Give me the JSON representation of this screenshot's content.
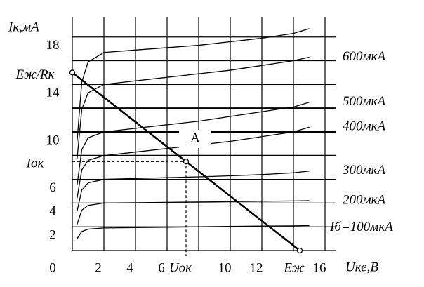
{
  "chart_data": {
    "type": "line",
    "y_label": "Iк,мА",
    "x_label": "Uке,В",
    "annotation": "A",
    "xlim": [
      0,
      16.7
    ],
    "ylim": [
      0,
      19.7
    ],
    "xgrid": [
      0,
      2,
      4,
      6,
      8,
      10,
      12,
      14,
      16
    ],
    "ygrid": [
      0,
      2,
      4,
      6,
      8,
      10,
      12,
      14,
      16,
      18
    ],
    "xticks": [
      0,
      2,
      4,
      6,
      {
        "value": 7.2,
        "label": "Uок"
      },
      10,
      12,
      {
        "value": 14.4,
        "label": "Eж"
      },
      16
    ],
    "yticks": [
      2,
      4,
      6,
      {
        "value": 7.5,
        "label": "Iок"
      },
      10,
      14,
      {
        "value": 15,
        "label": "Eж/Rк"
      },
      18
    ],
    "x": [
      0.3,
      0.6,
      1,
      2,
      4,
      6,
      8,
      10,
      12,
      14,
      15
    ],
    "series": [
      {
        "name": "Iб=100мкА",
        "color": "#000",
        "values": [
          1.0,
          1.6,
          1.8,
          1.9,
          1.93,
          1.96,
          2.0,
          2.03,
          2.06,
          2.08,
          2.1
        ]
      },
      {
        "name": "200мкА",
        "color": "#000",
        "values": [
          2.2,
          3.4,
          3.8,
          4.0,
          4.03,
          4.06,
          4.09,
          4.12,
          4.15,
          4.18,
          4.2
        ]
      },
      {
        "name": "300мкА",
        "color": "#000",
        "values": [
          3.3,
          5.1,
          5.7,
          6.0,
          6.07,
          6.14,
          6.21,
          6.3,
          6.4,
          6.55,
          6.7
        ]
      },
      {
        "name": "400мкА",
        "color": "#000",
        "values": [
          4.4,
          6.8,
          7.6,
          8.0,
          8.3,
          8.6,
          8.9,
          9.2,
          9.6,
          10.0,
          10.4
        ]
      },
      {
        "name": "500мкА",
        "color": "#000",
        "values": [
          5.5,
          8.5,
          9.5,
          10.0,
          10.3,
          10.6,
          10.9,
          11.3,
          11.7,
          12.1,
          12.5
        ]
      },
      {
        "name": "600мкА",
        "color": "#000",
        "values": [
          7.7,
          11.9,
          13.3,
          14.0,
          14.3,
          14.6,
          14.9,
          15.2,
          15.6,
          16.0,
          16.3
        ]
      },
      {
        "color": "#000",
        "values": [
          9.2,
          14.2,
          15.9,
          16.7,
          16.9,
          17.1,
          17.3,
          17.6,
          17.9,
          18.3,
          18.7
        ]
      }
    ],
    "load_line": {
      "x": [
        0,
        14.4
      ],
      "values": [
        15,
        0
      ]
    },
    "q_point": {
      "x": 7.2,
      "value": 7.5
    }
  }
}
